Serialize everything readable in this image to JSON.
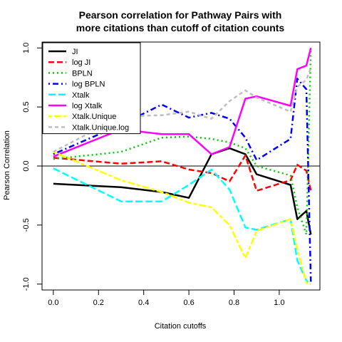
{
  "chart_data": {
    "type": "line",
    "title": "Pearson correlation for Pathway Pairs with",
    "subtitle": "more citations than cutoff of citation counts",
    "xlabel": "Citation cutoffs",
    "ylabel": "Pearson Correlation",
    "xlim": [
      -0.05,
      1.18
    ],
    "ylim": [
      -1.05,
      1.05
    ],
    "x_ticks": [
      0.0,
      0.2,
      0.4,
      0.6,
      0.8,
      1.0
    ],
    "x_tick_labels": [
      "0.0",
      "0.2",
      "0.4",
      "0.6",
      "0.8",
      "1.0"
    ],
    "y_ticks": [
      -1.0,
      -0.5,
      0.0,
      0.5,
      1.0
    ],
    "y_tick_labels": [
      "-1.0",
      "-0.5",
      "0.0",
      "0.5",
      "1.0"
    ],
    "reference_line_y": 0,
    "legend_position": "top-left",
    "x": [
      0,
      0.3,
      0.48,
      0.6,
      0.7,
      0.78,
      0.85,
      0.9,
      1.05,
      1.08,
      1.12,
      1.14
    ],
    "series": [
      {
        "name": "JI",
        "color": "#000000",
        "dash": "solid",
        "values": [
          -0.15,
          -0.18,
          -0.22,
          -0.27,
          0.1,
          0.15,
          0.1,
          -0.07,
          -0.16,
          -0.45,
          -0.38,
          -0.58
        ]
      },
      {
        "name": "log JI",
        "color": "#ff0000",
        "dash": "long",
        "values": [
          0.07,
          0.02,
          0.04,
          -0.03,
          -0.06,
          -0.13,
          0.09,
          -0.21,
          -0.12,
          0.01,
          -0.04,
          -0.21
        ]
      },
      {
        "name": "BPLN",
        "color": "#00cc00",
        "dash": "dot",
        "values": [
          0.06,
          0.12,
          0.24,
          0.25,
          0.23,
          0.2,
          0.15,
          0.0,
          -0.08,
          -0.35,
          -0.58,
          1.0
        ]
      },
      {
        "name": "log BPLN",
        "color": "#0000ff",
        "dash": "dotdash",
        "values": [
          0.1,
          0.35,
          0.52,
          0.41,
          0.45,
          0.4,
          0.24,
          0.05,
          0.23,
          0.74,
          0.65,
          -0.98
        ]
      },
      {
        "name": "Xtalk",
        "color": "#00ffff",
        "dash": "longdash",
        "values": [
          -0.02,
          -0.3,
          -0.3,
          -0.16,
          -0.03,
          -0.2,
          -0.52,
          -0.54,
          -0.45,
          -0.8,
          -0.97,
          -1.0
        ]
      },
      {
        "name": "log Xtalk",
        "color": "#ff00ff",
        "dash": "solid",
        "values": [
          0.08,
          0.31,
          0.27,
          0.27,
          0.1,
          0.16,
          0.57,
          0.59,
          0.51,
          0.82,
          0.85,
          1.0
        ]
      },
      {
        "name": "Xtalk.Unique",
        "color": "#ffff00",
        "dash": "twodash",
        "values": [
          0.12,
          -0.12,
          -0.22,
          -0.31,
          -0.35,
          -0.5,
          -0.78,
          -0.55,
          -0.45,
          -0.7,
          -0.99,
          -1.0
        ]
      },
      {
        "name": "Xtalk.Unique.log",
        "color": "#bebebe",
        "dash": "dash",
        "values": [
          0.12,
          0.42,
          0.43,
          0.46,
          0.4,
          0.55,
          0.64,
          0.58,
          0.46,
          0.67,
          0.73,
          0.83
        ]
      }
    ]
  }
}
